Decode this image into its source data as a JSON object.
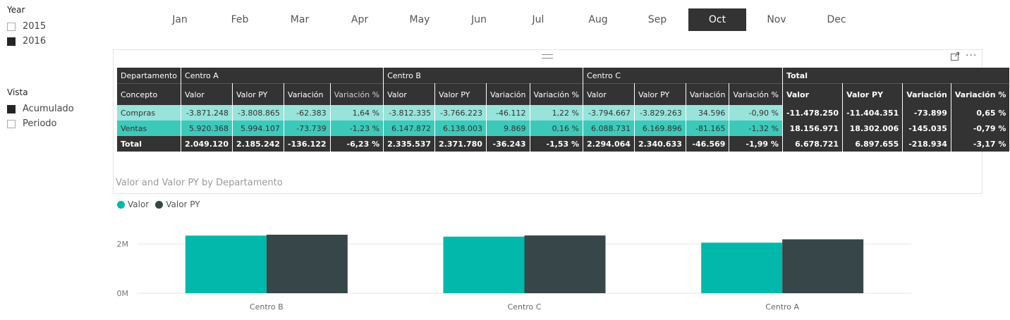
{
  "year_slicer": {
    "title": "Year",
    "options": [
      {
        "label": "2015",
        "checked": false
      },
      {
        "label": "2016",
        "checked": true
      }
    ]
  },
  "vista_slicer": {
    "title": "Vista",
    "options": [
      {
        "label": "Acumulado",
        "checked": true
      },
      {
        "label": "Periodo",
        "checked": false
      }
    ]
  },
  "months": [
    "Jan",
    "Feb",
    "Mar",
    "Apr",
    "May",
    "Jun",
    "Jul",
    "Aug",
    "Sep",
    "Oct",
    "Nov",
    "Dec"
  ],
  "selected_month": "Oct",
  "matrix": {
    "dept_label": "Departamento",
    "concept_label": "Concepto",
    "groups": [
      "Centro A",
      "Centro B",
      "Centro C",
      "Total"
    ],
    "measures": [
      "Valor",
      "Valor PY",
      "Variación",
      "Variación %"
    ],
    "rows": [
      {
        "label": "Compras",
        "values": [
          "-3.871.248",
          "-3.808.865",
          "-62.383",
          "1,64 %",
          "-3.812.335",
          "-3.766.223",
          "-46.112",
          "1,22 %",
          "-3.794.667",
          "-3.829.263",
          "34.596",
          "-0,90 %",
          "-11.478.250",
          "-11.404.351",
          "-73.899",
          "0,65 %"
        ]
      },
      {
        "label": "Ventas",
        "values": [
          "5.920.368",
          "5.994.107",
          "-73.739",
          "-1,23 %",
          "6.147.872",
          "6.138.003",
          "9.869",
          "0,16 %",
          "6.088.731",
          "6.169.896",
          "-81.165",
          "-1,32 %",
          "18.156.971",
          "18.302.006",
          "-145.035",
          "-0,79 %"
        ]
      },
      {
        "label": "Total",
        "values": [
          "2.049.120",
          "2.185.242",
          "-136.122",
          "-6,23 %",
          "2.335.537",
          "2.371.780",
          "-36.243",
          "-1,53 %",
          "2.294.064",
          "2.340.633",
          "-46.569",
          "-1,99 %",
          "6.678.721",
          "6.897.655",
          "-218.934",
          "-3,17 %"
        ]
      }
    ]
  },
  "chart_data": {
    "type": "bar",
    "title": "Valor and Valor PY by Departamento",
    "categories": [
      "Centro B",
      "Centro C",
      "Centro A"
    ],
    "series": [
      {
        "name": "Valor",
        "values": [
          2335537,
          2294064,
          2049120
        ],
        "color": "#01b8aa"
      },
      {
        "name": "Valor PY",
        "values": [
          2371780,
          2340633,
          2185242
        ],
        "color": "#374649"
      }
    ],
    "yticks": [
      "0M",
      "2M"
    ],
    "ylim": [
      0,
      2400000
    ],
    "legend": "top-left",
    "grid": true
  },
  "icons": {
    "focus": "focus-mode-icon",
    "more": "more-options-icon"
  }
}
